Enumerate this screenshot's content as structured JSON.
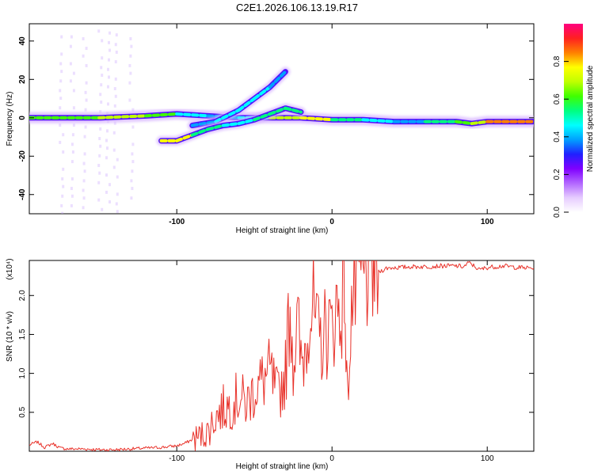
{
  "title": "C2E1.2026.106.13.19.R17",
  "colors": {
    "snr_line": "#e8322a",
    "axis": "#000000",
    "colorbar": [
      "#ffffff",
      "#e6ccff",
      "#b266ff",
      "#8000ff",
      "#2020ff",
      "#00a0ff",
      "#00ffff",
      "#00ff80",
      "#40ff00",
      "#c0ff00",
      "#ffff00",
      "#ff8000",
      "#ff2020",
      "#ff0080"
    ]
  },
  "chart_data": [
    {
      "type": "heatmap",
      "name": "spectrogram",
      "xlabel": "Height of straight line (km)",
      "ylabel": "Frequency (Hz)",
      "xlim": [
        -195,
        130
      ],
      "ylim": [
        -50,
        49
      ],
      "xticks": [
        -100,
        0,
        100
      ],
      "xtick_labels": [
        "-100",
        "0",
        "100"
      ],
      "yticks": [
        -40,
        -20,
        0,
        20,
        40
      ],
      "ytick_labels": [
        "-40",
        "-20",
        "0",
        "20",
        "40"
      ],
      "colorbar": {
        "label": "Normalized spectral amplitude",
        "range": [
          0,
          1
        ],
        "ticks": [
          0.0,
          0.2,
          0.4,
          0.6,
          0.8
        ],
        "tick_labels": [
          "0.0",
          "0.2",
          "0.4",
          "0.6",
          "0.8"
        ]
      },
      "tracks": [
        {
          "name": "carrier",
          "points": [
            [
              -195,
              0
            ],
            [
              -150,
              0
            ],
            [
              -120,
              1
            ],
            [
              -100,
              2
            ],
            [
              -80,
              1
            ],
            [
              -60,
              0
            ],
            [
              -40,
              0
            ],
            [
              -20,
              0
            ],
            [
              0,
              -1
            ],
            [
              20,
              -1
            ],
            [
              40,
              -2
            ],
            [
              60,
              -2
            ],
            [
              80,
              -2
            ],
            [
              90,
              -3
            ],
            [
              100,
              -2
            ],
            [
              130,
              -2
            ]
          ],
          "amplitude": [
            0.6,
            0.7,
            0.75,
            0.5,
            0.4,
            0.4,
            0.5,
            0.9,
            0.6,
            0.5,
            0.4,
            0.3,
            0.8,
            0.5,
            0.85,
            0.9
          ]
        },
        {
          "name": "upper-branch",
          "points": [
            [
              -90,
              -4
            ],
            [
              -75,
              -2
            ],
            [
              -60,
              4
            ],
            [
              -50,
              10
            ],
            [
              -40,
              16
            ],
            [
              -30,
              24
            ]
          ],
          "amplitude": [
            0.3,
            0.4,
            0.5,
            0.45,
            0.4,
            0.35
          ]
        },
        {
          "name": "lower-branch",
          "points": [
            [
              -110,
              -12
            ],
            [
              -100,
              -12
            ],
            [
              -90,
              -9
            ],
            [
              -80,
              -6
            ],
            [
              -70,
              -4
            ],
            [
              -60,
              -3
            ],
            [
              -50,
              -1
            ],
            [
              -40,
              2
            ],
            [
              -30,
              5
            ],
            [
              -20,
              3
            ]
          ],
          "amplitude": [
            0.7,
            0.9,
            0.6,
            0.5,
            0.5,
            0.45,
            0.5,
            0.55,
            0.6,
            0.5
          ]
        }
      ]
    },
    {
      "type": "line",
      "name": "snr",
      "xlabel": "Height of straight line (km)",
      "ylabel": "SNR (10 * v/v)",
      "y_multiplier_label": "(x10⁴)",
      "xlim": [
        -195,
        130
      ],
      "ylim": [
        0,
        2.45
      ],
      "xticks": [
        -100,
        0,
        100
      ],
      "xtick_labels": [
        "-100",
        "0",
        "100"
      ],
      "yticks": [
        0.5,
        1.0,
        1.5,
        2.0
      ],
      "ytick_labels": [
        "0.5",
        "1.0",
        "1.5",
        "2.0"
      ],
      "series": [
        {
          "name": "SNR",
          "x": [
            -195,
            -190,
            -185,
            -180,
            -175,
            -170,
            -160,
            -150,
            -140,
            -130,
            -120,
            -110,
            -100,
            -95,
            -90,
            -85,
            -80,
            -75,
            -70,
            -65,
            -60,
            -55,
            -50,
            -45,
            -40,
            -35,
            -30,
            -27,
            -25,
            -22,
            -20,
            -17,
            -15,
            -12,
            -10,
            -8,
            -6,
            -4,
            -2,
            0,
            2,
            5,
            7,
            8,
            9,
            10,
            12,
            15,
            18,
            20,
            22,
            25,
            28,
            30,
            35,
            40,
            45,
            50,
            60,
            70,
            80,
            85,
            88,
            90,
            95,
            100,
            110,
            120,
            130
          ],
          "y": [
            0.08,
            0.12,
            0.05,
            0.1,
            0.04,
            0.03,
            0.03,
            0.02,
            0.02,
            0.03,
            0.04,
            0.05,
            0.07,
            0.1,
            0.15,
            0.2,
            0.25,
            0.45,
            0.55,
            0.6,
            0.7,
            0.6,
            0.8,
            0.9,
            1.0,
            0.7,
            1.0,
            1.95,
            1.2,
            1.6,
            1.1,
            1.35,
            1.9,
            1.8,
            1.5,
            1.4,
            1.45,
            1.55,
            1.6,
            1.5,
            1.9,
            1.75,
            2.1,
            2.38,
            1.2,
            0.65,
            1.8,
            2.05,
            2.2,
            2.15,
            2.3,
            2.4,
            2.32,
            2.3,
            2.35,
            2.36,
            2.36,
            2.37,
            2.37,
            2.38,
            2.38,
            2.37,
            2.42,
            2.4,
            2.33,
            2.36,
            2.38,
            2.36,
            2.35
          ]
        }
      ]
    }
  ]
}
